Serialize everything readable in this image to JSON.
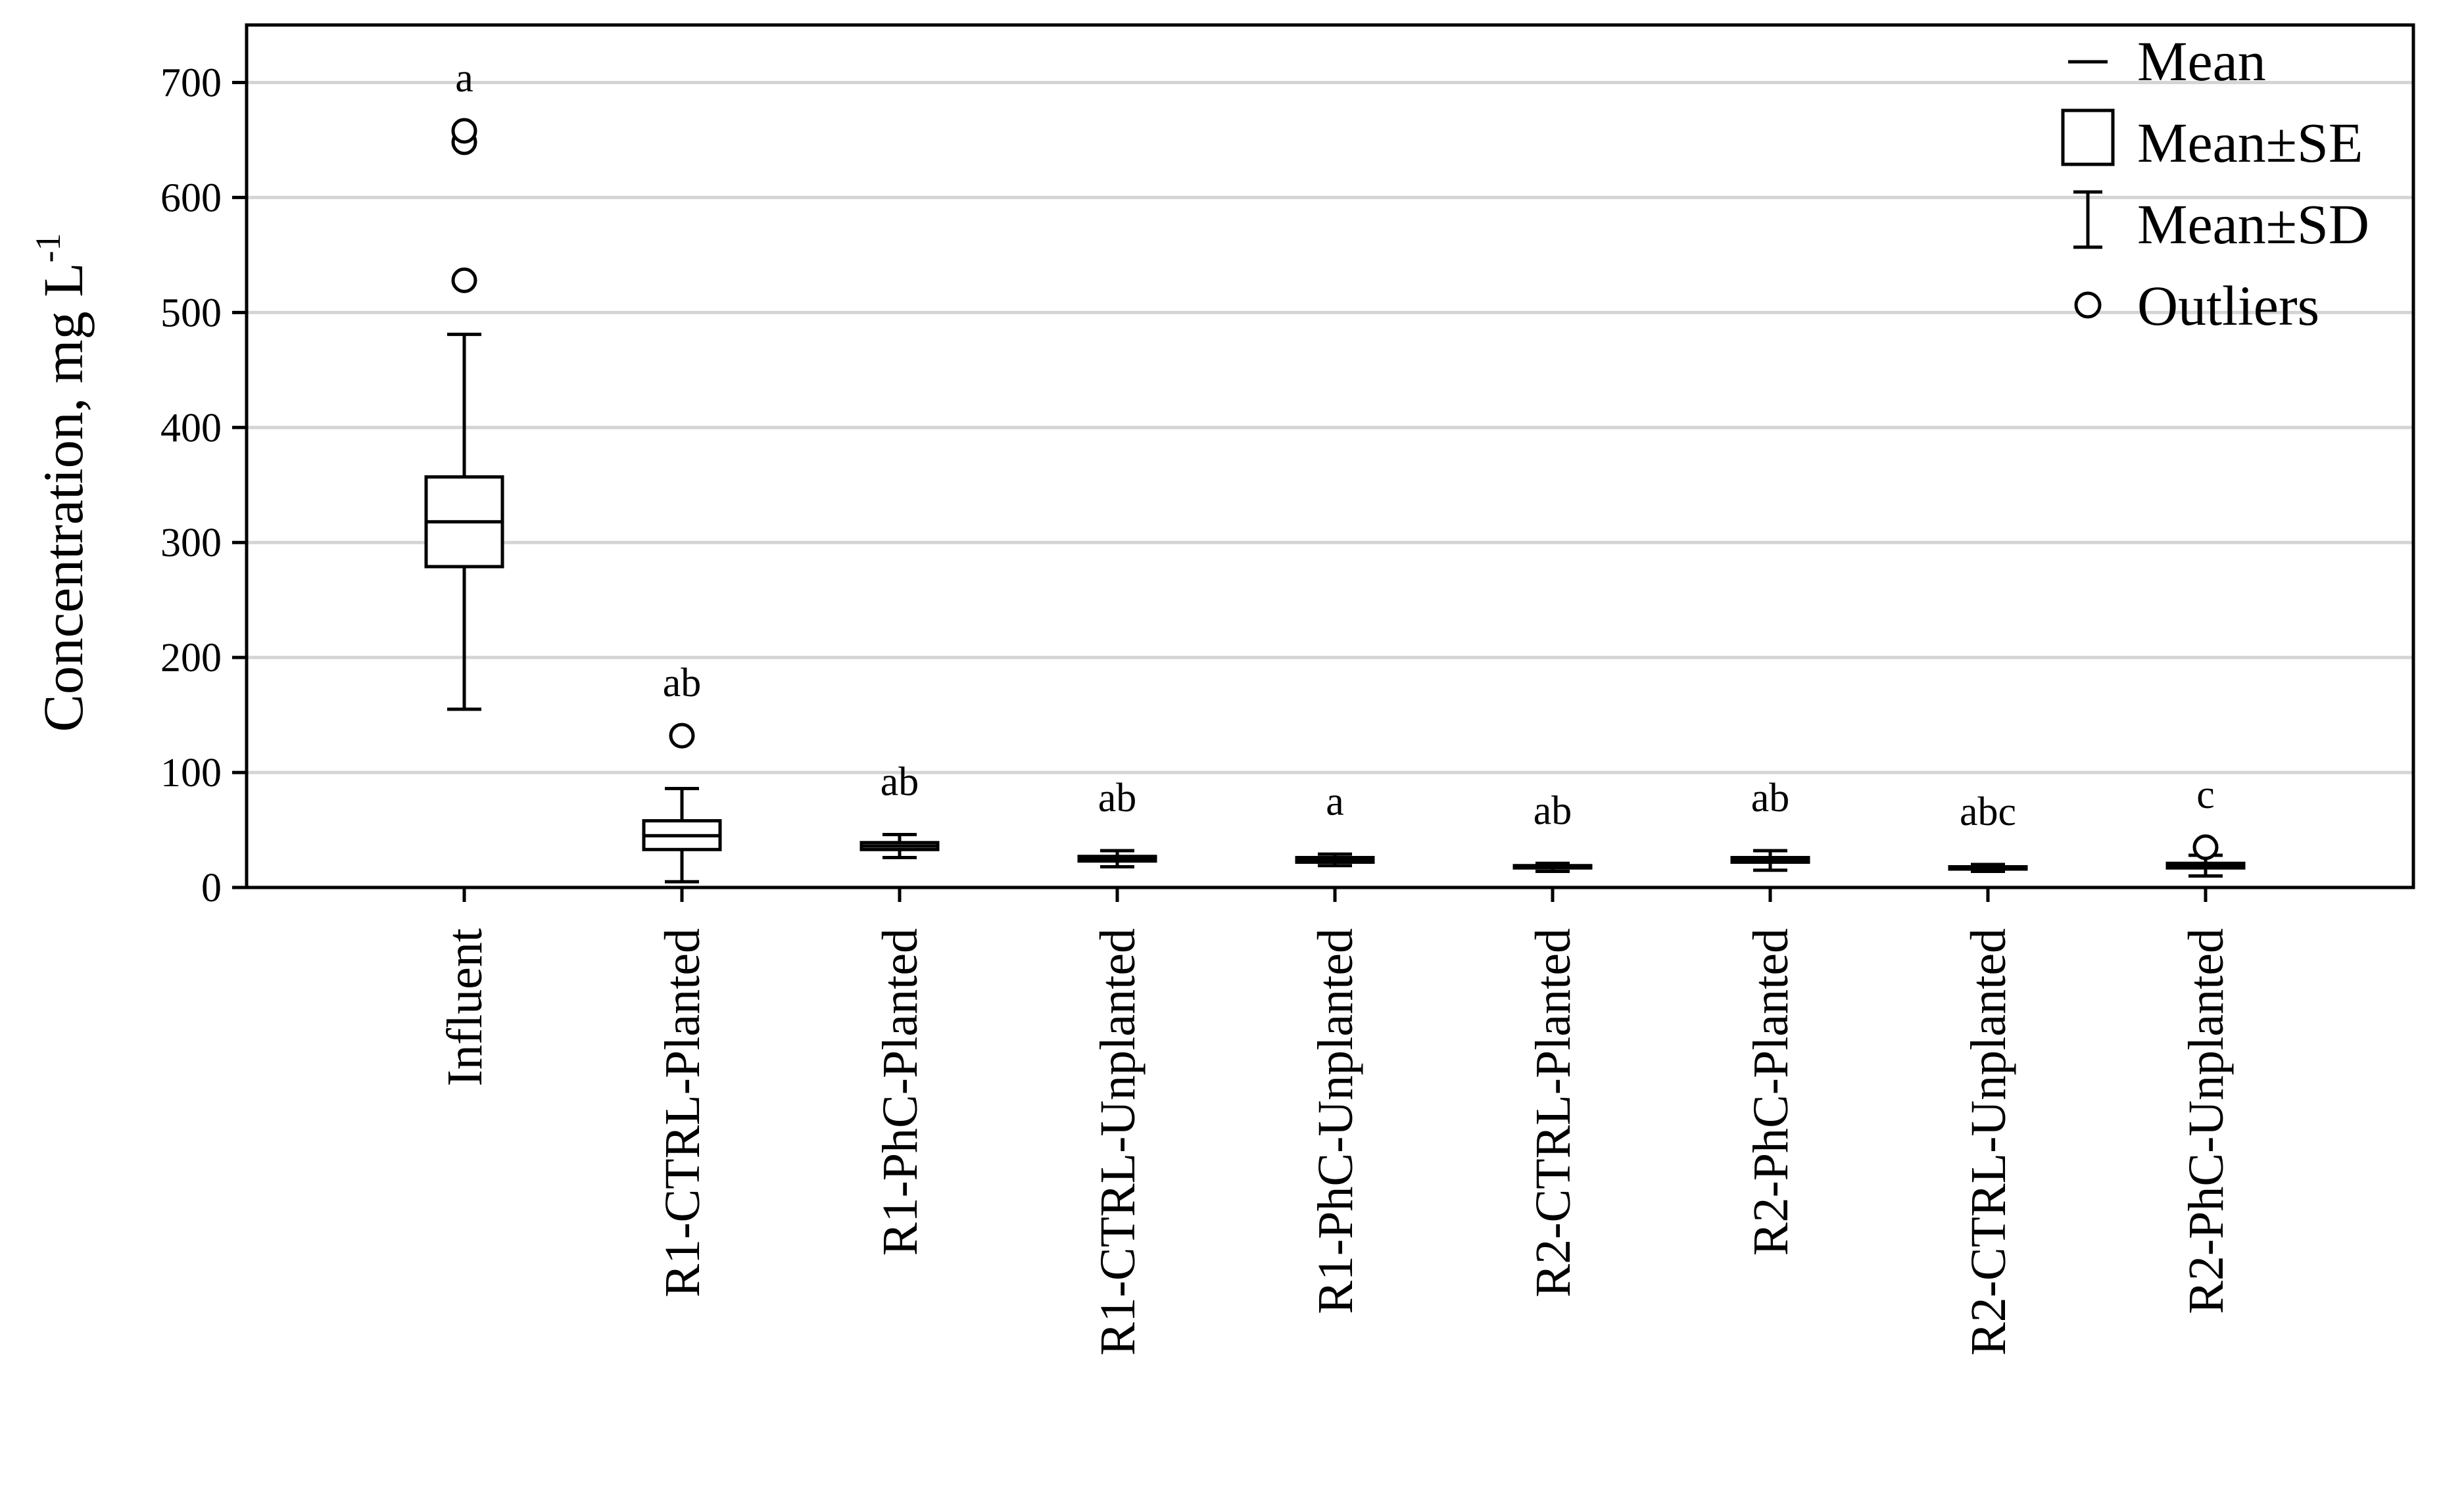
{
  "chart_data": {
    "type": "box",
    "ylabel": "Concentration, mg L",
    "ylabel_superscript": "-1",
    "ylim": [
      0,
      750
    ],
    "yticks": [
      0,
      100,
      200,
      300,
      400,
      500,
      600,
      700
    ],
    "grid": "horizontal",
    "legend_position": "top-right",
    "legend": [
      {
        "symbol": "line",
        "label": "Mean"
      },
      {
        "symbol": "box",
        "label": "Mean±SE"
      },
      {
        "symbol": "whisker",
        "label": "Mean±SD"
      },
      {
        "symbol": "circle",
        "label": "Outliers"
      }
    ],
    "categories": [
      {
        "name": "Influent",
        "mean": 318,
        "se_low": 279,
        "se_high": 357,
        "sd_low": 155,
        "sd_high": 481,
        "outliers": [
          528,
          648,
          658
        ],
        "letter": "a"
      },
      {
        "name": "R1-CTRL-Planted",
        "mean": 45,
        "se_low": 33,
        "se_high": 58,
        "sd_low": 5,
        "sd_high": 86,
        "outliers": [
          132
        ],
        "letter": "ab"
      },
      {
        "name": "R1-PhC-Planted",
        "mean": 36,
        "se_low": 33,
        "se_high": 39,
        "sd_low": 26,
        "sd_high": 46,
        "outliers": [],
        "letter": "ab"
      },
      {
        "name": "R1-CTRL-Unplanted",
        "mean": 25,
        "se_low": 23,
        "se_high": 27,
        "sd_low": 18,
        "sd_high": 32,
        "outliers": [],
        "letter": "ab"
      },
      {
        "name": "R1-PhC-Unplanted",
        "mean": 24,
        "se_low": 22,
        "se_high": 26,
        "sd_low": 19,
        "sd_high": 29,
        "outliers": [],
        "letter": "a"
      },
      {
        "name": "R2-CTRL-Planted",
        "mean": 18,
        "se_low": 17,
        "se_high": 19,
        "sd_low": 14,
        "sd_high": 21,
        "outliers": [],
        "letter": "ab"
      },
      {
        "name": "R2-PhC-Planted",
        "mean": 24,
        "se_low": 22,
        "se_high": 26,
        "sd_low": 15,
        "sd_high": 32,
        "outliers": [],
        "letter": "ab"
      },
      {
        "name": "R2-CTRL-Unplanted",
        "mean": 17,
        "se_low": 16,
        "se_high": 18,
        "sd_low": 14,
        "sd_high": 20,
        "outliers": [],
        "letter": "abc"
      },
      {
        "name": "R2-PhC-Unplanted",
        "mean": 19,
        "se_low": 17,
        "se_high": 21,
        "sd_low": 10,
        "sd_high": 28,
        "outliers": [
          35
        ],
        "letter": "c"
      }
    ]
  }
}
